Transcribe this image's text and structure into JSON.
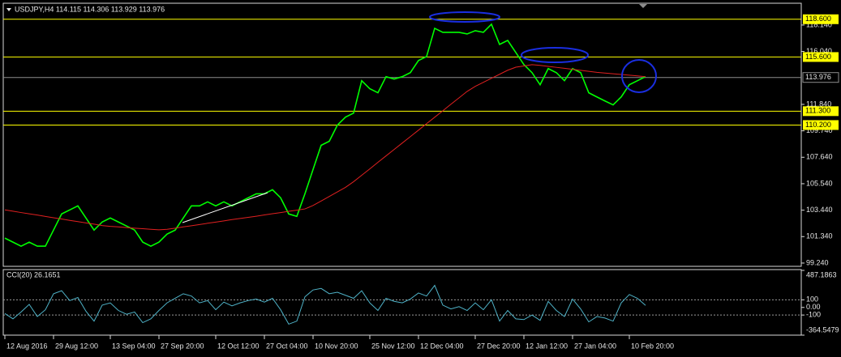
{
  "chart_data": [
    {
      "type": "line",
      "title": "USDJPY,H4  114.115 114.306 113.929 113.976",
      "categories": [
        "12 Aug 2016",
        null,
        null,
        null,
        null,
        null,
        "29 Aug 12:00",
        null,
        null,
        null,
        null,
        null,
        null,
        "13 Sep 04:00",
        null,
        null,
        null,
        null,
        null,
        "27 Sep 20:00",
        null,
        null,
        null,
        null,
        null,
        null,
        "12 Oct 12:00",
        null,
        null,
        null,
        null,
        null,
        "27 Oct 04:00",
        null,
        null,
        null,
        null,
        null,
        "10 Nov 20:00",
        null,
        null,
        null,
        null,
        null,
        null,
        "25 Nov 12:00",
        null,
        null,
        null,
        null,
        null,
        "12 Dec 04:00",
        null,
        null,
        null,
        null,
        null,
        null,
        "27 Dec 20:00",
        null,
        null,
        null,
        null,
        null,
        "12 Jan 12:00",
        null,
        null,
        null,
        null,
        null,
        "27 Jan 04:00",
        null,
        null,
        null,
        null,
        null,
        null,
        "10 Feb 20:00",
        null,
        null
      ],
      "series": [
        {
          "color": "#00ff00",
          "values": [
            101.22,
            100.9,
            100.58,
            100.9,
            100.58,
            100.58,
            101.86,
            103.14,
            103.46,
            103.78,
            102.82,
            101.86,
            102.5,
            102.82,
            102.5,
            102.18,
            101.86,
            100.9,
            100.58,
            100.9,
            101.54,
            101.86,
            102.82,
            103.78,
            103.78,
            104.1,
            103.78,
            104.1,
            103.78,
            104.1,
            104.42,
            104.74,
            104.74,
            105.06,
            104.42,
            103.14,
            102.95,
            104.74,
            106.67,
            108.59,
            108.91,
            110.19,
            110.83,
            111.15,
            113.72,
            113.08,
            112.76,
            114.04,
            113.85,
            114.04,
            114.36,
            115.32,
            115.64,
            117.88,
            117.56,
            117.56,
            117.56,
            117.43,
            117.69,
            117.56,
            118.2,
            116.6,
            116.92,
            115.96,
            115.0,
            114.36,
            113.4,
            114.68,
            114.36,
            113.72,
            114.68,
            114.36,
            112.76,
            112.43,
            112.11,
            111.8,
            112.43,
            113.4,
            113.72,
            114.04
          ]
        },
        {
          "color": "#e02020",
          "values": [
            103.46,
            103.36,
            103.25,
            103.15,
            103.05,
            102.94,
            102.84,
            102.74,
            102.63,
            102.53,
            102.43,
            102.33,
            102.22,
            102.15,
            102.11,
            102.06,
            102.01,
            101.97,
            101.92,
            101.88,
            101.92,
            102.01,
            102.11,
            102.2,
            102.3,
            102.4,
            102.49,
            102.59,
            102.69,
            102.78,
            102.87,
            102.96,
            103.06,
            103.16,
            103.25,
            103.35,
            103.44,
            103.54,
            103.81,
            104.17,
            104.53,
            104.89,
            105.25,
            105.7,
            106.21,
            106.72,
            107.24,
            107.75,
            108.26,
            108.77,
            109.28,
            109.79,
            110.31,
            110.82,
            111.33,
            111.85,
            112.36,
            112.87,
            113.27,
            113.59,
            113.91,
            114.23,
            114.55,
            114.79,
            114.89,
            114.99,
            114.94,
            114.86,
            114.78,
            114.7,
            114.62,
            114.54,
            114.46,
            114.38,
            114.33,
            114.27,
            114.21,
            114.16,
            114.1,
            114.04
          ]
        }
      ],
      "ylim": [
        98.98,
        119.87
      ],
      "yticks": [
        {
          "value": 118.14,
          "label": "118.140"
        },
        {
          "value": 116.04,
          "label": "116.040"
        },
        {
          "value": 111.84,
          "label": "111.840"
        },
        {
          "value": 109.74,
          "label": "109.740"
        },
        {
          "value": 107.64,
          "label": "107.640"
        },
        {
          "value": 105.54,
          "label": "105.540"
        },
        {
          "value": 103.44,
          "label": "103.440"
        },
        {
          "value": 101.34,
          "label": "101.340"
        },
        {
          "value": 99.24,
          "label": "99.240"
        }
      ],
      "levels": [
        {
          "value": 118.6,
          "label": "118.600"
        },
        {
          "value": 115.6,
          "label": "115.600"
        },
        {
          "value": 111.3,
          "label": "111.300"
        },
        {
          "value": 110.2,
          "label": "110.200"
        }
      ],
      "level_color": "#ffff00",
      "current": {
        "value": 113.976,
        "label": "113.976"
      }
    },
    {
      "type": "line",
      "title": "CCI(20) 26.1651",
      "series": [
        {
          "color": "#4fb3c8",
          "values": [
            -80,
            -150,
            -60,
            40,
            -120,
            -30,
            180,
            220,
            90,
            130,
            -50,
            -180,
            30,
            60,
            -40,
            -90,
            -60,
            -200,
            -150,
            -40,
            60,
            120,
            180,
            150,
            60,
            90,
            -30,
            70,
            20,
            60,
            90,
            110,
            70,
            120,
            -30,
            -220,
            -180,
            140,
            230,
            250,
            180,
            200,
            160,
            120,
            220,
            60,
            -40,
            120,
            80,
            60,
            110,
            190,
            150,
            290,
            30,
            -20,
            10,
            -40,
            60,
            -30,
            100,
            -180,
            -40,
            -150,
            -160,
            -100,
            -170,
            80,
            -40,
            -120,
            110,
            -20,
            -190,
            -120,
            -140,
            -180,
            60,
            170,
            120,
            26.1651
          ]
        }
      ],
      "ylim": [
        -364.5479,
        487.1863
      ],
      "yticks": [
        487.1863,
        100,
        {
          "value": 0,
          "label": "0.00"
        },
        -100,
        -364.5479
      ],
      "dotted_levels": [
        100,
        -100
      ]
    }
  ]
}
